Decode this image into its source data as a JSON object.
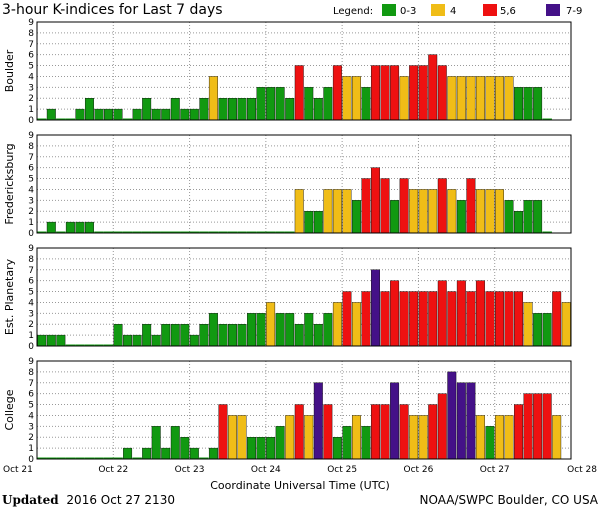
{
  "title": "3-hour K-indices for Last 7 days",
  "legend": {
    "label": "Legend:",
    "items": [
      {
        "label": "0-3",
        "color": "#119911"
      },
      {
        "label": "4",
        "color": "#f0bd17"
      },
      {
        "label": "5,6",
        "color": "#ee1111"
      },
      {
        "label": "7-9",
        "color": "#441188"
      }
    ]
  },
  "footer": {
    "updated_label": "Updated",
    "updated_value": "2016 Oct 27 2130",
    "credit": "NOAA/SWPC Boulder, CO USA"
  },
  "chart_data": {
    "type": "bar",
    "xlabel": "Coordinate Universal Time (UTC)",
    "x_tick_labels": [
      "Oct 21",
      "Oct 22",
      "Oct 23",
      "Oct 24",
      "Oct 25",
      "Oct 26",
      "Oct 27",
      "Oct 28"
    ],
    "ylim": [
      0,
      9
    ],
    "y_ticks": [
      0,
      1,
      2,
      3,
      4,
      5,
      6,
      7,
      8,
      9
    ],
    "bins_per_day": 8,
    "series": [
      {
        "name": "Boulder",
        "values": [
          0,
          1,
          0,
          0,
          1,
          2,
          1,
          1,
          1,
          0,
          1,
          2,
          1,
          1,
          2,
          1,
          1,
          2,
          4,
          2,
          2,
          2,
          2,
          3,
          3,
          3,
          2,
          5,
          3,
          2,
          3,
          5,
          4,
          4,
          3,
          5,
          5,
          5,
          4,
          5,
          5,
          6,
          5,
          4,
          4,
          4,
          4,
          4,
          4,
          4,
          3,
          3,
          3,
          0
        ]
      },
      {
        "name": "Fredericksburg",
        "values": [
          0,
          1,
          0,
          1,
          1,
          1,
          0,
          0,
          0,
          0,
          0,
          0,
          0,
          0,
          0,
          0,
          0,
          0,
          0,
          0,
          0,
          0,
          0,
          0,
          0,
          0,
          0,
          4,
          2,
          2,
          4,
          4,
          4,
          3,
          5,
          6,
          5,
          3,
          5,
          4,
          4,
          4,
          5,
          4,
          3,
          5,
          4,
          4,
          4,
          3,
          2,
          3,
          3,
          0
        ]
      },
      {
        "name": "Est. Planetary",
        "values": [
          1,
          1,
          1,
          0,
          0,
          0,
          0,
          0,
          2,
          1,
          1,
          2,
          1,
          2,
          2,
          2,
          1,
          2,
          3,
          2,
          2,
          2,
          3,
          3,
          4,
          3,
          3,
          2,
          3,
          2,
          3,
          4,
          5,
          4,
          5,
          7,
          5,
          6,
          5,
          5,
          5,
          5,
          6,
          5,
          6,
          5,
          6,
          5,
          5,
          5,
          5,
          4,
          3,
          3,
          5,
          4
        ]
      },
      {
        "name": "College",
        "values": [
          0,
          0,
          0,
          0,
          0,
          0,
          0,
          0,
          0,
          1,
          0,
          1,
          3,
          1,
          3,
          2,
          1,
          0,
          1,
          5,
          4,
          4,
          2,
          2,
          2,
          3,
          4,
          5,
          4,
          7,
          5,
          2,
          3,
          4,
          3,
          5,
          5,
          7,
          5,
          4,
          4,
          5,
          6,
          8,
          7,
          7,
          4,
          3,
          4,
          4,
          5,
          6,
          6,
          6,
          4
        ]
      }
    ]
  }
}
